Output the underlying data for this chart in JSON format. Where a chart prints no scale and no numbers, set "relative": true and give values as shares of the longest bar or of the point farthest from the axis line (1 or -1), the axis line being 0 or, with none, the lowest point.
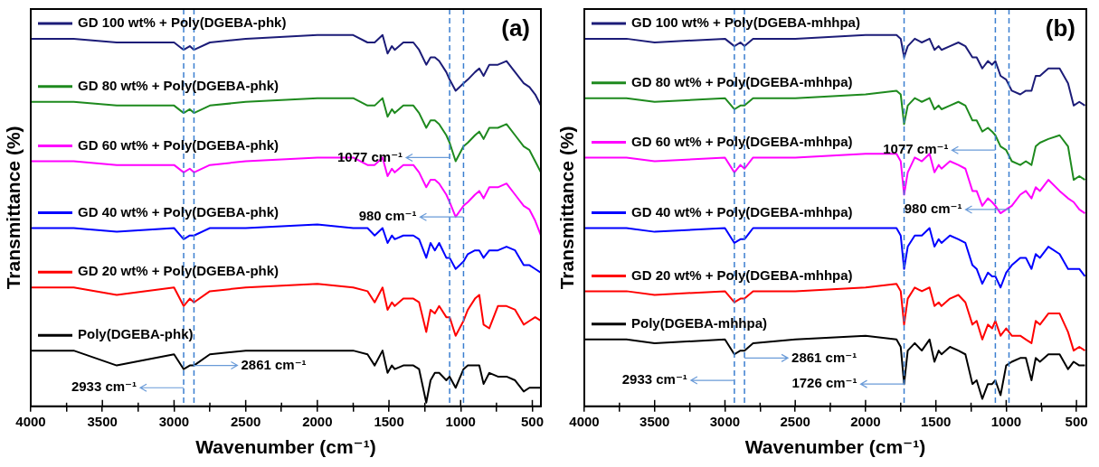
{
  "chart_data": [
    {
      "type": "line",
      "relative": true,
      "marker": "none",
      "legend": "top left",
      "xlabel": "Wavenumber (cm⁻¹)",
      "ylabel": "Transmittance (%)",
      "xlim": [
        4000,
        440
      ],
      "xticks": [
        4000,
        {
          "value": 3750,
          "label": null
        },
        3500,
        {
          "value": 3250,
          "label": null
        },
        3000,
        {
          "value": 2750,
          "label": null
        },
        2500,
        {
          "value": 2250,
          "label": null
        },
        2000,
        {
          "value": 1750,
          "label": null
        },
        1500,
        {
          "value": 1250,
          "label": null
        },
        1000,
        {
          "value": 750,
          "label": null
        },
        500
      ],
      "x": [
        4000,
        3700,
        3400,
        3000,
        2933,
        2890,
        2861,
        2750,
        2500,
        2000,
        1750,
        1650,
        1600,
        1545,
        1510,
        1480,
        1460,
        1400,
        1330,
        1290,
        1240,
        1210,
        1180,
        1150,
        1100,
        1077,
        1035,
        980,
        950,
        900,
        870,
        840,
        800,
        740,
        680,
        620,
        560,
        520,
        480,
        440
      ],
      "series": [
        {
          "name": "GD 100 wt% + Poly(DGEBA-phk)",
          "color": "#1c1c78",
          "values": [
            0.99,
            0.99,
            0.98,
            0.98,
            0.96,
            0.97,
            0.96,
            0.98,
            0.99,
            1.0,
            1.0,
            0.98,
            0.98,
            1.0,
            0.95,
            0.97,
            0.96,
            0.98,
            0.98,
            0.96,
            0.92,
            0.94,
            0.94,
            0.93,
            0.9,
            0.88,
            0.85,
            0.87,
            0.88,
            0.9,
            0.91,
            0.89,
            0.92,
            0.92,
            0.93,
            0.9,
            0.87,
            0.86,
            0.84,
            0.81
          ]
        },
        {
          "name": "GD 80 wt% + Poly(DGEBA-phk)",
          "color": "#1e8a1e",
          "values": [
            0.82,
            0.82,
            0.81,
            0.81,
            0.79,
            0.8,
            0.79,
            0.81,
            0.82,
            0.83,
            0.83,
            0.81,
            0.81,
            0.83,
            0.78,
            0.8,
            0.79,
            0.81,
            0.81,
            0.79,
            0.75,
            0.77,
            0.77,
            0.76,
            0.73,
            0.71,
            0.66,
            0.7,
            0.71,
            0.73,
            0.74,
            0.72,
            0.75,
            0.75,
            0.76,
            0.73,
            0.7,
            0.69,
            0.66,
            0.63
          ]
        },
        {
          "name": "GD 60 wt% + Poly(DGEBA-phk)",
          "color": "#ff00ff",
          "values": [
            0.66,
            0.66,
            0.65,
            0.65,
            0.63,
            0.64,
            0.63,
            0.65,
            0.66,
            0.67,
            0.67,
            0.65,
            0.65,
            0.67,
            0.62,
            0.64,
            0.63,
            0.65,
            0.65,
            0.63,
            0.59,
            0.61,
            0.61,
            0.6,
            0.57,
            0.55,
            0.51,
            0.54,
            0.55,
            0.57,
            0.58,
            0.56,
            0.59,
            0.59,
            0.6,
            0.57,
            0.54,
            0.53,
            0.5,
            0.46
          ]
        },
        {
          "name": "GD 40 wt% + Poly(DGEBA-phk)",
          "color": "#0000ff",
          "values": [
            0.48,
            0.48,
            0.47,
            0.48,
            0.45,
            0.46,
            0.46,
            0.48,
            0.48,
            0.49,
            0.48,
            0.48,
            0.46,
            0.48,
            0.44,
            0.46,
            0.45,
            0.46,
            0.46,
            0.45,
            0.4,
            0.44,
            0.42,
            0.44,
            0.4,
            0.4,
            0.37,
            0.39,
            0.41,
            0.42,
            0.42,
            0.4,
            0.42,
            0.42,
            0.43,
            0.42,
            0.38,
            0.38,
            0.37,
            0.36
          ]
        },
        {
          "name": "GD 20 wt% + Poly(DGEBA-phk)",
          "color": "#ff0000",
          "values": [
            0.32,
            0.32,
            0.3,
            0.32,
            0.27,
            0.29,
            0.28,
            0.31,
            0.32,
            0.33,
            0.32,
            0.31,
            0.28,
            0.32,
            0.26,
            0.28,
            0.27,
            0.29,
            0.29,
            0.28,
            0.2,
            0.26,
            0.25,
            0.27,
            0.24,
            0.24,
            0.19,
            0.23,
            0.26,
            0.29,
            0.3,
            0.22,
            0.21,
            0.27,
            0.27,
            0.26,
            0.22,
            0.23,
            0.24,
            0.23
          ]
        },
        {
          "name": "Poly(DGEBA-phk)",
          "color": "#000000",
          "values": [
            0.15,
            0.15,
            0.11,
            0.14,
            0.1,
            0.11,
            0.11,
            0.14,
            0.15,
            0.15,
            0.15,
            0.14,
            0.11,
            0.15,
            0.09,
            0.11,
            0.1,
            0.11,
            0.11,
            0.1,
            0.01,
            0.07,
            0.09,
            0.09,
            0.07,
            0.08,
            0.05,
            0.1,
            0.11,
            0.11,
            0.11,
            0.06,
            0.09,
            0.08,
            0.08,
            0.07,
            0.04,
            0.05,
            0.05,
            0.05
          ]
        }
      ],
      "ref_lines": [
        {
          "axis": "x",
          "value": 2933,
          "color": "#3c7fd0",
          "line_style": "dashed"
        },
        {
          "axis": "x",
          "value": 2861,
          "color": "#3c7fd0",
          "line_style": "dashed"
        },
        {
          "axis": "x",
          "value": 1077,
          "color": "#3c7fd0",
          "line_style": "dashed"
        },
        {
          "axis": "x",
          "value": 980,
          "color": "#3c7fd0",
          "line_style": "dashed"
        }
      ],
      "annotations": [
        "(a)",
        {
          "text": "2933 cm⁻¹",
          "x": 2933,
          "y": 0.05
        },
        {
          "text": "2861 cm⁻¹",
          "x": 2861,
          "y": 0.11
        },
        {
          "text": "1077 cm⁻¹",
          "x": 1077,
          "y": 0.67
        },
        {
          "text": "980 cm⁻¹",
          "x": 980,
          "y": 0.51
        }
      ]
    },
    {
      "type": "line",
      "relative": true,
      "marker": "none",
      "legend": "top left",
      "xlabel": "Wavenumber (cm⁻¹)",
      "ylabel": "Transmittance (%)",
      "xlim": [
        4000,
        430
      ],
      "xticks": [
        4000,
        {
          "value": 3750,
          "label": null
        },
        3500,
        {
          "value": 3250,
          "label": null
        },
        3000,
        {
          "value": 2750,
          "label": null
        },
        2500,
        {
          "value": 2250,
          "label": null
        },
        2000,
        {
          "value": 1750,
          "label": null
        },
        1500,
        {
          "value": 1250,
          "label": null
        },
        1000,
        {
          "value": 750,
          "label": null
        },
        500
      ],
      "x": [
        4000,
        3700,
        3500,
        3000,
        2933,
        2890,
        2861,
        2800,
        2500,
        2000,
        1780,
        1750,
        1726,
        1700,
        1650,
        1600,
        1545,
        1510,
        1480,
        1460,
        1400,
        1340,
        1290,
        1240,
        1210,
        1170,
        1130,
        1100,
        1077,
        1040,
        1000,
        960,
        900,
        860,
        820,
        790,
        760,
        700,
        620,
        560,
        520,
        480,
        440
      ],
      "series": [
        {
          "name": "GD 100 wt% + Poly(DGEBA-mhhpa)",
          "color": "#1c1c78",
          "values": [
            0.99,
            0.99,
            0.98,
            0.99,
            0.97,
            0.98,
            0.97,
            0.99,
            0.99,
            1.0,
            1.0,
            0.99,
            0.94,
            0.97,
            0.99,
            0.98,
            0.99,
            0.96,
            0.97,
            0.96,
            0.97,
            0.98,
            0.97,
            0.94,
            0.94,
            0.91,
            0.93,
            0.92,
            0.93,
            0.89,
            0.88,
            0.85,
            0.84,
            0.85,
            0.85,
            0.89,
            0.89,
            0.91,
            0.91,
            0.87,
            0.81,
            0.82,
            0.81
          ]
        },
        {
          "name": "GD 80 wt% + Poly(DGEBA-mhhpa)",
          "color": "#1e8a1e",
          "values": [
            0.83,
            0.83,
            0.82,
            0.83,
            0.8,
            0.81,
            0.81,
            0.83,
            0.83,
            0.84,
            0.85,
            0.84,
            0.76,
            0.81,
            0.83,
            0.82,
            0.83,
            0.8,
            0.81,
            0.8,
            0.81,
            0.82,
            0.81,
            0.77,
            0.77,
            0.74,
            0.75,
            0.74,
            0.73,
            0.7,
            0.69,
            0.66,
            0.65,
            0.66,
            0.65,
            0.7,
            0.71,
            0.72,
            0.73,
            0.7,
            0.61,
            0.62,
            0.61
          ]
        },
        {
          "name": "GD 60 wt% + Poly(DGEBA-mhhpa)",
          "color": "#ff00ff",
          "values": [
            0.67,
            0.67,
            0.66,
            0.67,
            0.63,
            0.65,
            0.64,
            0.67,
            0.67,
            0.68,
            0.68,
            0.66,
            0.57,
            0.63,
            0.67,
            0.66,
            0.68,
            0.63,
            0.65,
            0.64,
            0.66,
            0.65,
            0.64,
            0.58,
            0.58,
            0.54,
            0.56,
            0.55,
            0.54,
            0.52,
            0.53,
            0.54,
            0.57,
            0.58,
            0.56,
            0.59,
            0.58,
            0.61,
            0.58,
            0.56,
            0.55,
            0.53,
            0.52
          ]
        },
        {
          "name": "GD 40 wt% + Poly(DGEBA-mhhpa)",
          "color": "#0000ff",
          "values": [
            0.48,
            0.48,
            0.47,
            0.48,
            0.44,
            0.45,
            0.45,
            0.48,
            0.48,
            0.48,
            0.48,
            0.46,
            0.37,
            0.43,
            0.46,
            0.46,
            0.48,
            0.43,
            0.45,
            0.44,
            0.46,
            0.45,
            0.44,
            0.38,
            0.37,
            0.33,
            0.36,
            0.35,
            0.35,
            0.32,
            0.36,
            0.38,
            0.4,
            0.4,
            0.37,
            0.41,
            0.4,
            0.43,
            0.41,
            0.37,
            0.37,
            0.37,
            0.35
          ]
        },
        {
          "name": "GD 20 wt% + Poly(DGEBA-mhhpa)",
          "color": "#ff0000",
          "values": [
            0.31,
            0.31,
            0.3,
            0.31,
            0.28,
            0.29,
            0.29,
            0.31,
            0.31,
            0.32,
            0.33,
            0.31,
            0.22,
            0.29,
            0.32,
            0.31,
            0.32,
            0.27,
            0.28,
            0.27,
            0.29,
            0.3,
            0.28,
            0.22,
            0.23,
            0.18,
            0.22,
            0.21,
            0.23,
            0.19,
            0.21,
            0.19,
            0.19,
            0.18,
            0.17,
            0.23,
            0.22,
            0.25,
            0.25,
            0.2,
            0.15,
            0.16,
            0.15
          ]
        },
        {
          "name": "Poly(DGEBA-mhhpa)",
          "color": "#000000",
          "values": [
            0.18,
            0.18,
            0.17,
            0.18,
            0.14,
            0.15,
            0.15,
            0.17,
            0.18,
            0.19,
            0.18,
            0.16,
            0.06,
            0.15,
            0.17,
            0.15,
            0.18,
            0.12,
            0.15,
            0.14,
            0.16,
            0.15,
            0.14,
            0.06,
            0.07,
            0.02,
            0.06,
            0.06,
            0.07,
            0.03,
            0.11,
            0.12,
            0.13,
            0.13,
            0.07,
            0.13,
            0.12,
            0.14,
            0.14,
            0.1,
            0.12,
            0.11,
            0.11
          ]
        }
      ],
      "ref_lines": [
        {
          "axis": "x",
          "value": 2933,
          "color": "#3c7fd0",
          "line_style": "dashed"
        },
        {
          "axis": "x",
          "value": 2861,
          "color": "#3c7fd0",
          "line_style": "dashed"
        },
        {
          "axis": "x",
          "value": 1726,
          "color": "#3c7fd0",
          "line_style": "dashed"
        },
        {
          "axis": "x",
          "value": 1077,
          "color": "#3c7fd0",
          "line_style": "dashed"
        },
        {
          "axis": "x",
          "value": 980,
          "color": "#3c7fd0",
          "line_style": "dashed"
        }
      ],
      "annotations": [
        "(b)",
        {
          "text": "2933 cm⁻¹",
          "x": 2933,
          "y": 0.07
        },
        {
          "text": "2861 cm⁻¹",
          "x": 2861,
          "y": 0.13
        },
        {
          "text": "1726 cm⁻¹",
          "x": 1726,
          "y": 0.06
        },
        {
          "text": "1077 cm⁻¹",
          "x": 1077,
          "y": 0.69
        },
        {
          "text": "980 cm⁻¹",
          "x": 980,
          "y": 0.53
        }
      ]
    }
  ]
}
